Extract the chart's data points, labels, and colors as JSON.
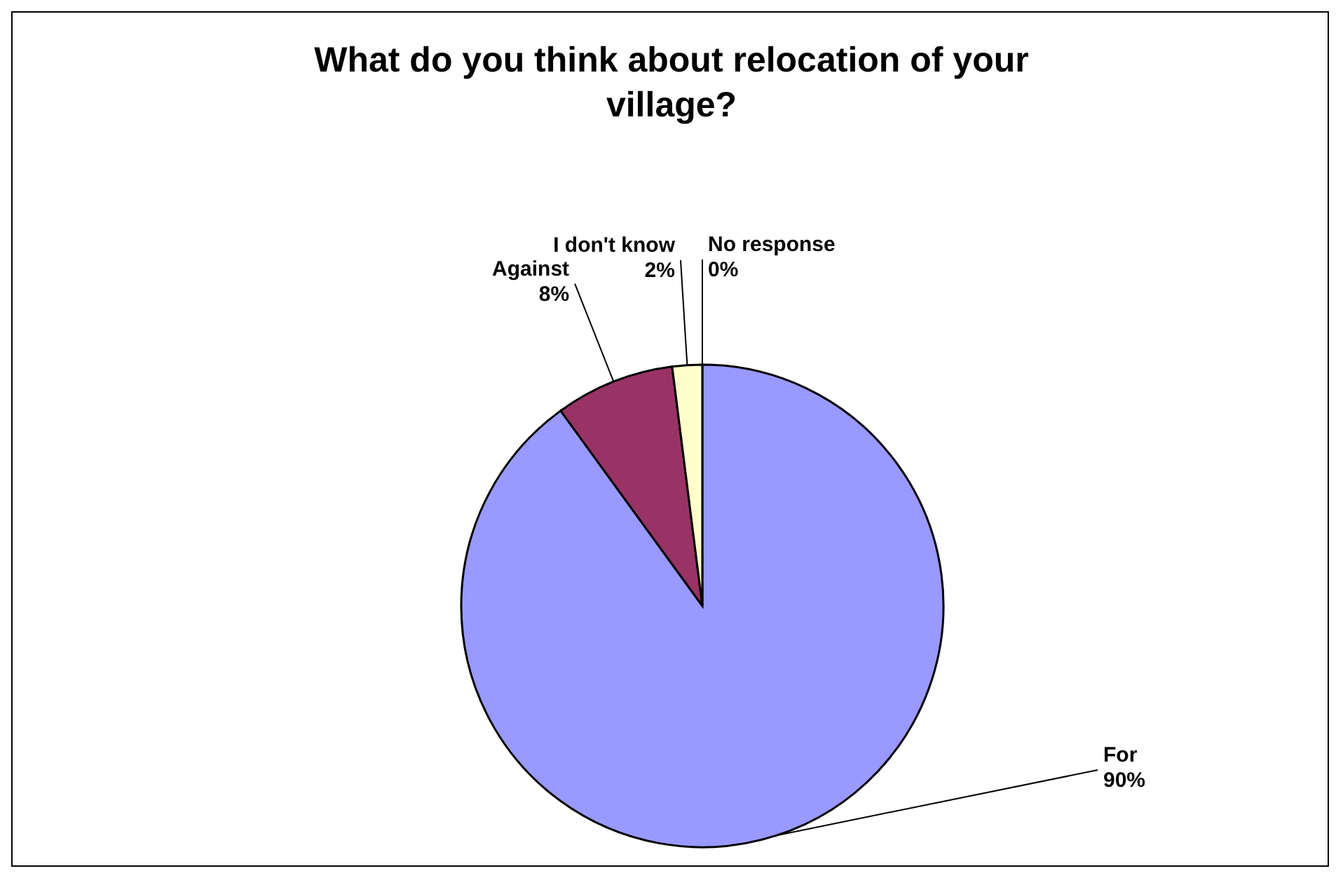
{
  "chart_data": {
    "type": "pie",
    "title": "What do you think about relocation of your village?",
    "categories": [
      "For",
      "Against",
      "I don't know",
      "No response"
    ],
    "values": [
      90,
      8,
      2,
      0
    ],
    "value_labels": [
      "90%",
      "8%",
      "2%",
      "0%"
    ],
    "colors": [
      "#9999ff",
      "#993366",
      "#ffffcc",
      "#ccffff"
    ],
    "legend": false
  }
}
